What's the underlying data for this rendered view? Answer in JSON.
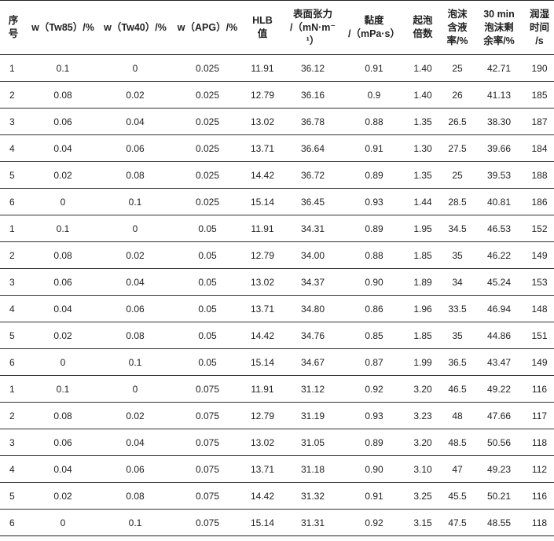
{
  "headers": [
    "序\n号",
    "w（Tw85）/%",
    "w（Tw40）/%",
    "w（APG）/%",
    "HLB\n值",
    "表面张力\n/（mN·m⁻\n¹）",
    "黏度\n/（mPa·s）",
    "起泡\n倍数",
    "泡沫\n含液\n率/%",
    "30 min\n泡沫剩\n余率/%",
    "润湿\n时间\n/s"
  ],
  "rows": [
    [
      "1",
      "0.1",
      "0",
      "0.025",
      "11.91",
      "36.12",
      "0.91",
      "1.40",
      "25",
      "42.71",
      "190"
    ],
    [
      "2",
      "0.08",
      "0.02",
      "0.025",
      "12.79",
      "36.16",
      "0.9",
      "1.40",
      "26",
      "41.13",
      "185"
    ],
    [
      "3",
      "0.06",
      "0.04",
      "0.025",
      "13.02",
      "36.78",
      "0.88",
      "1.35",
      "26.5",
      "38.30",
      "187"
    ],
    [
      "4",
      "0.04",
      "0.06",
      "0.025",
      "13.71",
      "36.64",
      "0.91",
      "1.30",
      "27.5",
      "39.66",
      "184"
    ],
    [
      "5",
      "0.02",
      "0.08",
      "0.025",
      "14.42",
      "36.72",
      "0.89",
      "1.35",
      "25",
      "39.53",
      "188"
    ],
    [
      "6",
      "0",
      "0.1",
      "0.025",
      "15.14",
      "36.45",
      "0.93",
      "1.44",
      "28.5",
      "40.81",
      "186"
    ],
    [
      "1",
      "0.1",
      "0",
      "0.05",
      "11.91",
      "34.31",
      "0.89",
      "1.95",
      "34.5",
      "46.53",
      "152"
    ],
    [
      "2",
      "0.08",
      "0.02",
      "0.05",
      "12.79",
      "34.00",
      "0.88",
      "1.85",
      "35",
      "46.22",
      "149"
    ],
    [
      "3",
      "0.06",
      "0.04",
      "0.05",
      "13.02",
      "34.37",
      "0.90",
      "1.89",
      "34",
      "45.24",
      "153"
    ],
    [
      "4",
      "0.04",
      "0.06",
      "0.05",
      "13.71",
      "34.80",
      "0.86",
      "1.96",
      "33.5",
      "46.94",
      "148"
    ],
    [
      "5",
      "0.02",
      "0.08",
      "0.05",
      "14.42",
      "34.76",
      "0.85",
      "1.85",
      "35",
      "44.86",
      "151"
    ],
    [
      "6",
      "0",
      "0.1",
      "0.05",
      "15.14",
      "34.67",
      "0.87",
      "1.99",
      "36.5",
      "43.47",
      "149"
    ],
    [
      "1",
      "0.1",
      "0",
      "0.075",
      "11.91",
      "31.12",
      "0.92",
      "3.20",
      "46.5",
      "49.22",
      "116"
    ],
    [
      "2",
      "0.08",
      "0.02",
      "0.075",
      "12.79",
      "31.19",
      "0.93",
      "3.23",
      "48",
      "47.66",
      "117"
    ],
    [
      "3",
      "0.06",
      "0.04",
      "0.075",
      "13.02",
      "31.05",
      "0.89",
      "3.20",
      "48.5",
      "50.56",
      "118"
    ],
    [
      "4",
      "0.04",
      "0.06",
      "0.075",
      "13.71",
      "31.18",
      "0.90",
      "3.10",
      "47",
      "49.23",
      "112"
    ],
    [
      "5",
      "0.02",
      "0.08",
      "0.075",
      "14.42",
      "31.32",
      "0.91",
      "3.25",
      "45.5",
      "50.21",
      "116"
    ],
    [
      "6",
      "0",
      "0.1",
      "0.075",
      "15.14",
      "31.31",
      "0.92",
      "3.15",
      "47.5",
      "48.55",
      "118"
    ]
  ]
}
